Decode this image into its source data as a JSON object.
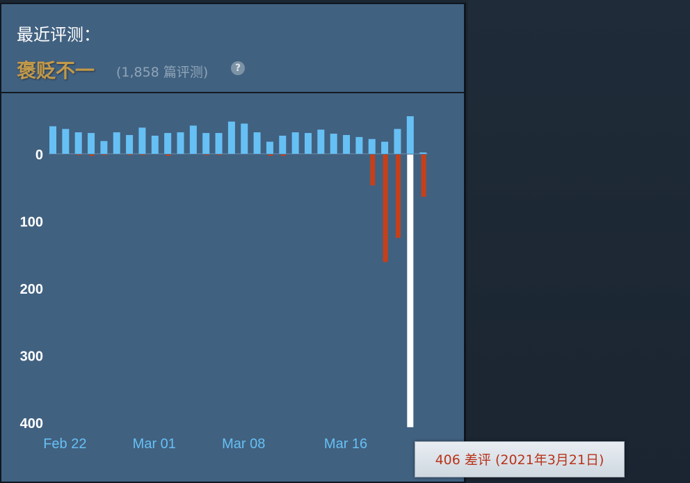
{
  "header": {
    "title": "最近评测：",
    "summary": "褒贬不一",
    "review_count": "(1,858 篇评测)",
    "help_icon": "?"
  },
  "tooltip": {
    "text": "406 差评 (2021年3月21日)"
  },
  "colors": {
    "positive": "#66c0f4",
    "negative": "#c5401a",
    "highlight": "#ffffff",
    "panel": "#416180"
  },
  "chart_data": {
    "type": "bar",
    "x": [
      "2021-02-21",
      "2021-02-22",
      "2021-02-23",
      "2021-02-24",
      "2021-02-25",
      "2021-02-26",
      "2021-02-27",
      "2021-02-28",
      "2021-03-01",
      "2021-03-02",
      "2021-03-03",
      "2021-03-04",
      "2021-03-05",
      "2021-03-06",
      "2021-03-07",
      "2021-03-08",
      "2021-03-09",
      "2021-03-10",
      "2021-03-11",
      "2021-03-12",
      "2021-03-13",
      "2021-03-14",
      "2021-03-15",
      "2021-03-16",
      "2021-03-17",
      "2021-03-18",
      "2021-03-19",
      "2021-03-20",
      "2021-03-21",
      "2021-03-22"
    ],
    "series": [
      {
        "values": [
          41,
          37,
          32,
          31,
          19,
          32,
          28,
          39,
          27,
          31,
          32,
          42,
          31,
          31,
          48,
          45,
          32,
          18,
          27,
          32,
          31,
          36,
          30,
          28,
          25,
          22,
          18,
          37,
          56,
          2
        ]
      },
      {
        "values": [
          0,
          0,
          -1,
          -2,
          -1,
          0,
          -1,
          -1,
          0,
          -2,
          0,
          0,
          -1,
          -1,
          0,
          0,
          0,
          -2,
          -2,
          0,
          0,
          0,
          0,
          0,
          0,
          -46,
          -160,
          -124,
          -406,
          -63
        ]
      }
    ],
    "highlighted": {
      "x": "2021-03-21",
      "series": 1
    },
    "x_tick_labels": [
      {
        "x": "2021-02-22",
        "label": "Feb 22"
      },
      {
        "x": "2021-03-01",
        "label": "Mar 01"
      },
      {
        "x": "2021-03-08",
        "label": "Mar 08"
      },
      {
        "x": "2021-03-16",
        "label": "Mar 16"
      }
    ],
    "y_tick_labels": [
      {
        "v": 0,
        "label": "0"
      },
      {
        "v": -100,
        "label": "100"
      },
      {
        "v": -200,
        "label": "200"
      },
      {
        "v": -300,
        "label": "300"
      },
      {
        "v": -400,
        "label": "400"
      }
    ],
    "ylim": [
      -400,
      60
    ],
    "grid": false
  }
}
